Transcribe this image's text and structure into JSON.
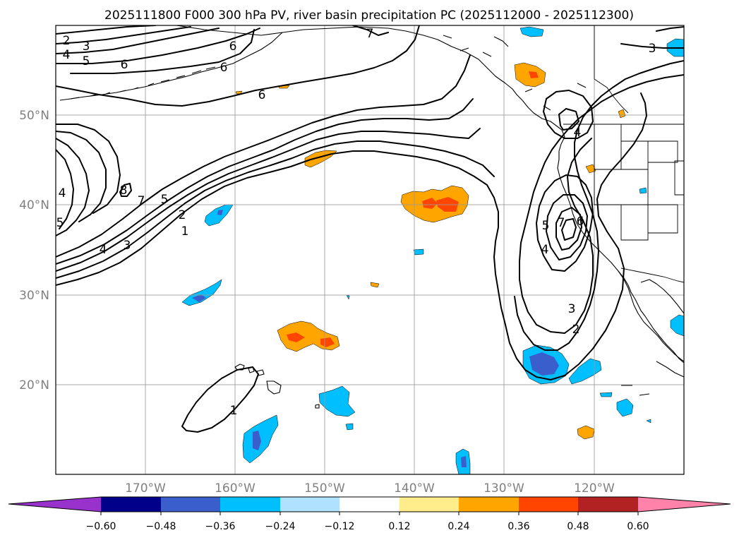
{
  "title": "2025111800 F000 300 hPa PV, river basin precipitation PC (2025112000 - 2025112300)",
  "map": {
    "projection": "PlateCarree",
    "lon_range": [
      -180,
      -110
    ],
    "lat_range": [
      10,
      60
    ],
    "gridlines": true,
    "lon_ticks": [
      {
        "value": -170,
        "label": "170°W"
      },
      {
        "value": -160,
        "label": "160°W"
      },
      {
        "value": -150,
        "label": "150°W"
      },
      {
        "value": -140,
        "label": "140°W"
      },
      {
        "value": -130,
        "label": "130°W"
      },
      {
        "value": -120,
        "label": "120°W"
      }
    ],
    "lat_ticks": [
      {
        "value": 50,
        "label": "50°N"
      },
      {
        "value": 40,
        "label": "40°N"
      },
      {
        "value": 30,
        "label": "30°N"
      },
      {
        "value": 20,
        "label": "20°N"
      }
    ]
  },
  "pv_contours": {
    "field": "300 hPa PV",
    "color": "#000000",
    "levels": [
      1,
      2,
      3,
      4,
      5,
      6,
      7,
      8
    ],
    "labels": [
      {
        "text": "2",
        "lon": -179,
        "lat": 59
      },
      {
        "text": "3",
        "lon": -177,
        "lat": 58
      },
      {
        "text": "4",
        "lon": -179,
        "lat": 57
      },
      {
        "text": "5",
        "lon": -176.5,
        "lat": 56.3
      },
      {
        "text": "6",
        "lon": -172,
        "lat": 55.7
      },
      {
        "text": "6",
        "lon": -159.5,
        "lat": 58
      },
      {
        "text": "6",
        "lon": -158.5,
        "lat": 55.6
      },
      {
        "text": "7",
        "lon": -145,
        "lat": 59.1
      },
      {
        "text": "6",
        "lon": -156.7,
        "lat": 52.2
      },
      {
        "text": "3",
        "lon": -114,
        "lat": 57.7
      },
      {
        "text": "4",
        "lon": -179.3,
        "lat": 41.5
      },
      {
        "text": "5",
        "lon": -179.5,
        "lat": 38.3
      },
      {
        "text": "8",
        "lon": -172.6,
        "lat": 41.5
      },
      {
        "text": "7",
        "lon": -169.5,
        "lat": 40.2
      },
      {
        "text": "5",
        "lon": -167.8,
        "lat": 40.6
      },
      {
        "text": "2",
        "lon": -165.8,
        "lat": 38.5
      },
      {
        "text": "1",
        "lon": -164.5,
        "lat": 36.7
      },
      {
        "text": "3",
        "lon": -172,
        "lat": 35.5
      },
      {
        "text": "4",
        "lon": -174.7,
        "lat": 34.8
      },
      {
        "text": "4",
        "lon": -121.8,
        "lat": 47.7
      },
      {
        "text": "5",
        "lon": -125.3,
        "lat": 37.6
      },
      {
        "text": "7",
        "lon": -124.1,
        "lat": 38
      },
      {
        "text": "6",
        "lon": -122.2,
        "lat": 37.8
      },
      {
        "text": "4",
        "lon": -125.5,
        "lat": 34.3
      },
      {
        "text": "3",
        "lon": -123.8,
        "lat": 27.5
      },
      {
        "text": "2",
        "lon": -122.2,
        "lat": 25.2
      },
      {
        "text": "1",
        "lon": -166,
        "lat": 16.3
      }
    ]
  },
  "colorbar": {
    "extend": "both",
    "boundaries": [
      -0.72,
      -0.6,
      -0.48,
      -0.36,
      -0.24,
      -0.12,
      0.12,
      0.24,
      0.36,
      0.48,
      0.6,
      0.72
    ],
    "colors": [
      "#9932cc",
      "#00008b",
      "#3a5fcd",
      "#00bfff",
      "#b0e2ff",
      "#ffffff",
      "#ffec8b",
      "#ffa500",
      "#ff4500",
      "#b22222",
      "#ff82ab"
    ],
    "tick_labels": [
      {
        "value": -0.6,
        "label": "−0.60"
      },
      {
        "value": -0.48,
        "label": "−0.48"
      },
      {
        "value": -0.36,
        "label": "−0.36"
      },
      {
        "value": -0.24,
        "label": "−0.24"
      },
      {
        "value": -0.12,
        "label": "−0.12"
      },
      {
        "value": 0.12,
        "label": "0.12"
      },
      {
        "value": 0.24,
        "label": "0.24"
      },
      {
        "value": 0.36,
        "label": "0.36"
      },
      {
        "value": 0.48,
        "label": "0.48"
      },
      {
        "value": 0.6,
        "label": "0.60"
      }
    ]
  }
}
